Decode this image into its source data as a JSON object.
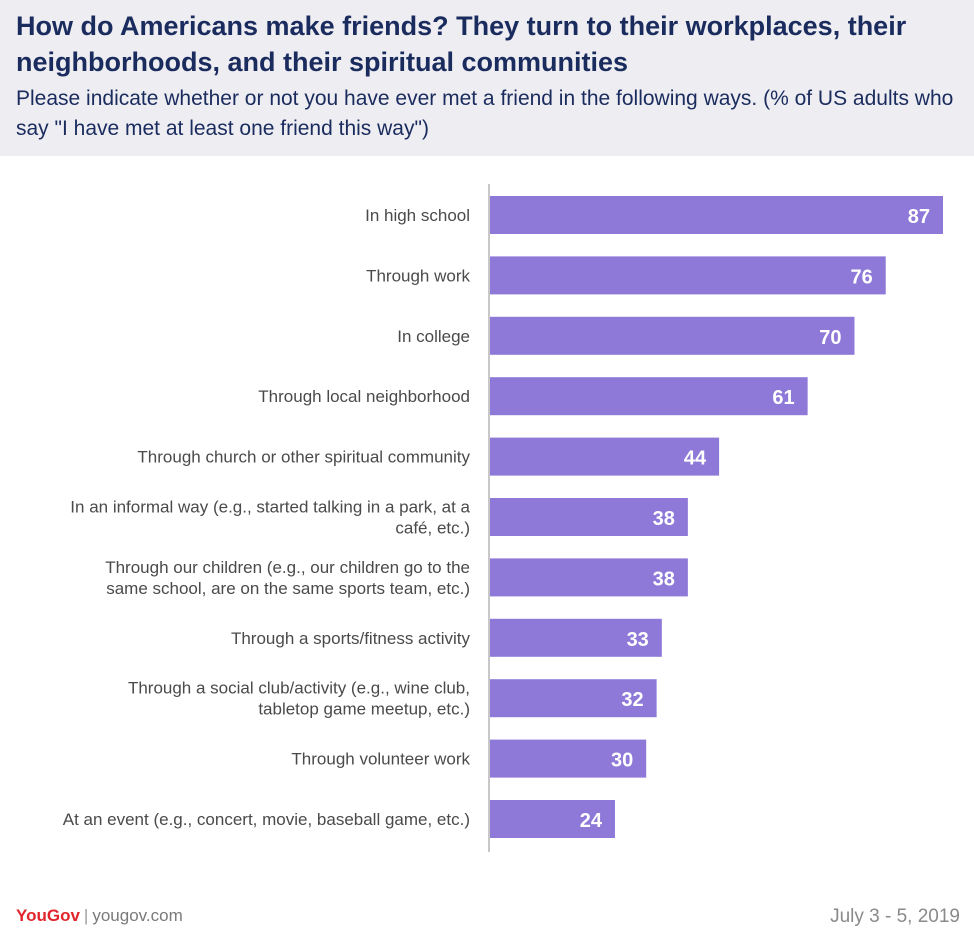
{
  "header": {
    "title": "How do Americans make friends? They turn to their workplaces, their neighborhoods, and their spiritual communities",
    "subtitle": "Please indicate whether or not you have ever met a friend in the following ways. (% of US adults who say \"I have met at least one friend this way\")"
  },
  "chart_data": {
    "type": "bar",
    "orientation": "horizontal",
    "title": "How do Americans make friends? They turn to their workplaces, their neighborhoods, and their spiritual communities",
    "xlabel": "",
    "ylabel": "",
    "xlim": [
      0,
      100
    ],
    "grid": false,
    "categories": [
      [
        "In high school"
      ],
      [
        "Through work"
      ],
      [
        "In college"
      ],
      [
        "Through local neighborhood"
      ],
      [
        "Through church or other spiritual community"
      ],
      [
        "In an informal way (e.g., started talking in a park, at a",
        "café, etc.)"
      ],
      [
        "Through our children (e.g., our children go to the",
        "same school, are on the same sports team, etc.)"
      ],
      [
        "Through a sports/fitness activity"
      ],
      [
        "Through a social club/activity (e.g., wine club,",
        "tabletop game meetup, etc.)"
      ],
      [
        "Through volunteer work"
      ],
      [
        "At an event (e.g., concert, movie, baseball game, etc.)"
      ]
    ],
    "values": [
      87,
      76,
      70,
      61,
      44,
      38,
      38,
      33,
      32,
      30,
      24
    ],
    "bar_color": "#8e79d8",
    "label_color": "#ffffff"
  },
  "footer": {
    "brand": "YouGov",
    "separator": "|",
    "site": "yougov.com",
    "date": "July 3 - 5, 2019"
  }
}
